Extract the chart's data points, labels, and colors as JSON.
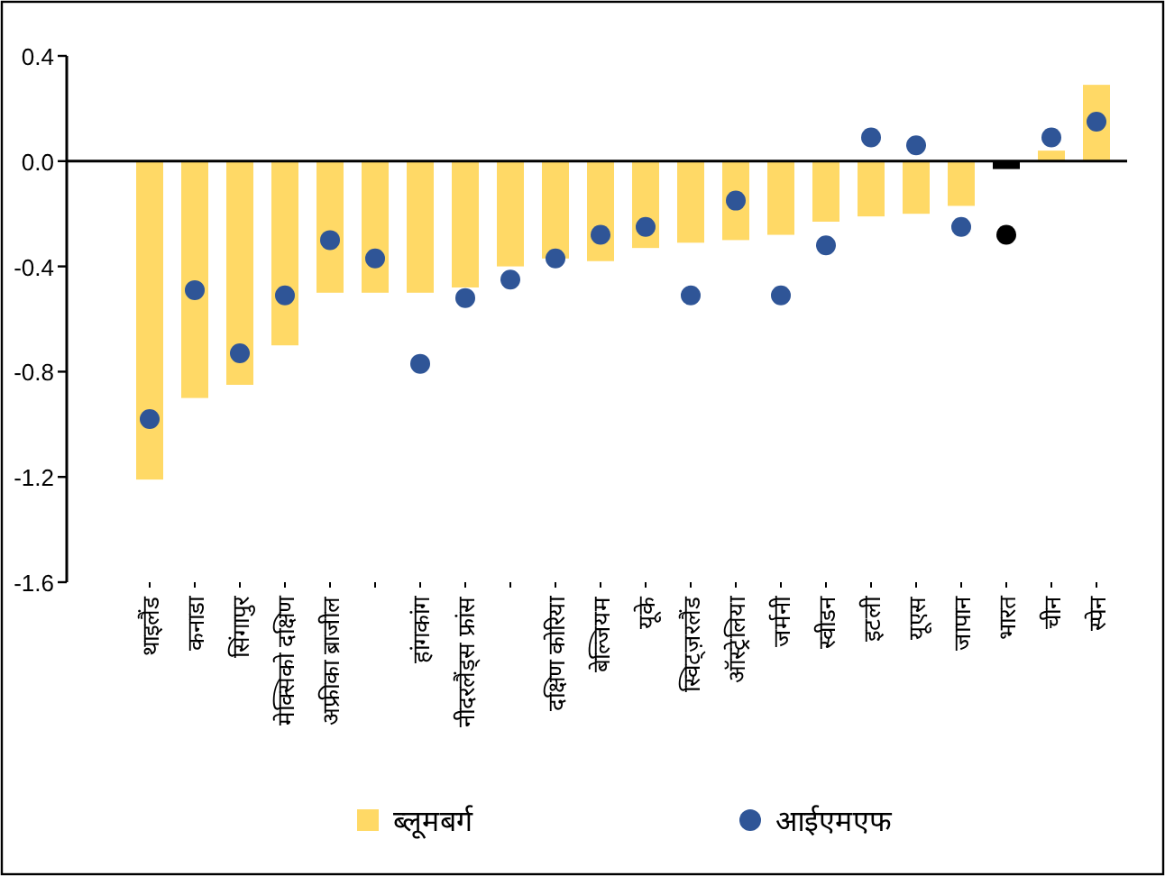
{
  "chart_data": {
    "type": "bar",
    "categories": [
      "थाइलैंड",
      "कनाडा",
      "सिंगापुर",
      "मेक्सिको दक्षिण",
      "अफ्रीका ब्राजील",
      null,
      "हांगकांग",
      "नीदरलैंड्स फ्रांस",
      null,
      "दक्षिण कोरिया",
      "बेल्जियम",
      "यूके",
      "स्विट्ज़रलैंड",
      "ऑस्ट्रेलिया",
      "जर्मनी",
      "स्वीडन",
      "इटली",
      "यूएस",
      "जापान",
      "भारत",
      "चीन",
      "स्पेन"
    ],
    "series": [
      {
        "name": "ब्लूमबर्ग",
        "color": "#ffd966",
        "colors": [
          "#ffd966",
          "#ffd966",
          "#ffd966",
          "#ffd966",
          "#ffd966",
          "#ffd966",
          "#ffd966",
          "#ffd966",
          "#ffd966",
          "#ffd966",
          "#ffd966",
          "#ffd966",
          "#ffd966",
          "#ffd966",
          "#ffd966",
          "#ffd966",
          "#ffd966",
          "#ffd966",
          "#ffd966",
          "#000000",
          "#ffd966",
          "#ffd966"
        ],
        "values": [
          -1.21,
          -0.9,
          -0.85,
          -0.7,
          -0.5,
          -0.5,
          -0.5,
          -0.48,
          -0.4,
          -0.37,
          -0.38,
          -0.33,
          -0.31,
          -0.3,
          -0.28,
          -0.23,
          -0.21,
          -0.2,
          -0.17,
          -0.03,
          0.04,
          0.29
        ]
      },
      {
        "name": "आईएमएफ",
        "type": "scatter",
        "marker": "circle",
        "color": "#2f5597",
        "colors": [
          "#2f5597",
          "#2f5597",
          "#2f5597",
          "#2f5597",
          "#2f5597",
          "#2f5597",
          "#2f5597",
          "#2f5597",
          "#2f5597",
          "#2f5597",
          "#2f5597",
          "#2f5597",
          "#2f5597",
          "#2f5597",
          "#2f5597",
          "#2f5597",
          "#2f5597",
          "#2f5597",
          "#2f5597",
          "#000000",
          "#2f5597",
          "#2f5597"
        ],
        "values": [
          -0.98,
          -0.49,
          -0.73,
          -0.51,
          -0.3,
          -0.37,
          -0.77,
          -0.52,
          -0.45,
          -0.37,
          -0.28,
          -0.25,
          -0.51,
          -0.15,
          -0.51,
          -0.32,
          0.09,
          0.06,
          -0.25,
          -0.28,
          0.09,
          0.15
        ]
      }
    ],
    "ylim": [
      -1.6,
      0.4
    ],
    "yticks": [
      0.4,
      {
        "value": 0,
        "label": "0.0"
      },
      -0.4,
      -0.8,
      -1.2,
      -1.6
    ],
    "legend": "bottom"
  }
}
